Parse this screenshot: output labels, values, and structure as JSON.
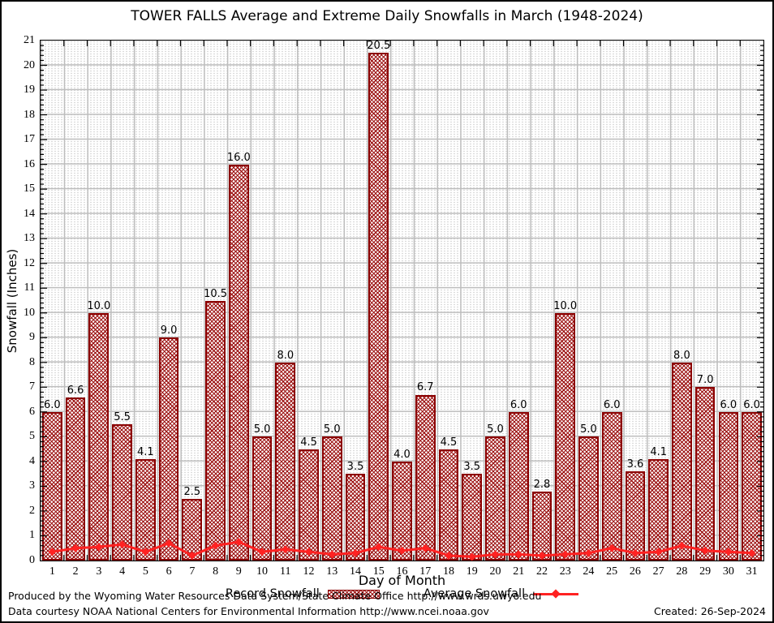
{
  "chart_data": {
    "type": "bar",
    "title": "TOWER FALLS Average and Extreme Daily Snowfalls in March (1948-2024)",
    "xlabel": "Day of Month",
    "ylabel": "Snowfall (Inches)",
    "ylim": [
      0,
      21
    ],
    "y_major_step": 1,
    "y_minor_step": 0.2,
    "y_ticks": [
      0,
      1,
      2,
      3,
      4,
      5,
      6,
      7,
      8,
      9,
      10,
      11,
      12,
      13,
      14,
      15,
      16,
      17,
      18,
      19,
      20,
      21
    ],
    "categories": [
      1,
      2,
      3,
      4,
      5,
      6,
      7,
      8,
      9,
      10,
      11,
      12,
      13,
      14,
      15,
      16,
      17,
      18,
      19,
      20,
      21,
      22,
      23,
      24,
      25,
      26,
      27,
      28,
      29,
      30,
      31
    ],
    "grid": true,
    "legend_position": "bottom",
    "series": [
      {
        "name": "Record Snowfall",
        "type": "bar",
        "values": [
          6.0,
          6.6,
          10.0,
          5.5,
          4.1,
          9.0,
          2.5,
          10.5,
          16.0,
          5.0,
          8.0,
          4.5,
          5.0,
          3.5,
          20.5,
          4.0,
          6.7,
          4.5,
          3.5,
          5.0,
          6.0,
          2.8,
          10.0,
          5.0,
          6.0,
          3.6,
          4.1,
          8.0,
          7.0,
          6.0,
          6.0
        ]
      },
      {
        "name": "Average Snowfall",
        "type": "line",
        "values": [
          0.35,
          0.5,
          0.55,
          0.65,
          0.35,
          0.7,
          0.2,
          0.6,
          0.75,
          0.35,
          0.45,
          0.35,
          0.25,
          0.3,
          0.55,
          0.4,
          0.5,
          0.2,
          0.15,
          0.25,
          0.25,
          0.2,
          0.25,
          0.3,
          0.5,
          0.3,
          0.35,
          0.6,
          0.4,
          0.35,
          0.3
        ]
      }
    ]
  },
  "legend": {
    "record_label": "Record Snowfall",
    "average_label": "Average Snowfall"
  },
  "footer": {
    "line1": "Produced by the Wyoming Water Resources Data System/State Climate Office http://www.wrds.uwyo.edu",
    "line2": "Data courtesy NOAA National Centers for Environmental Information http://www.ncei.noaa.gov",
    "created": "Created: 26-Sep-2024"
  },
  "colors": {
    "bar_border": "#8b0000",
    "bar_hatch": "#9b1111",
    "average_line": "#ff2222",
    "grid_major": "#bdbdbd",
    "grid_minor": "#cccccc",
    "frame": "#000000",
    "text": "#000000",
    "background": "#ffffff"
  }
}
